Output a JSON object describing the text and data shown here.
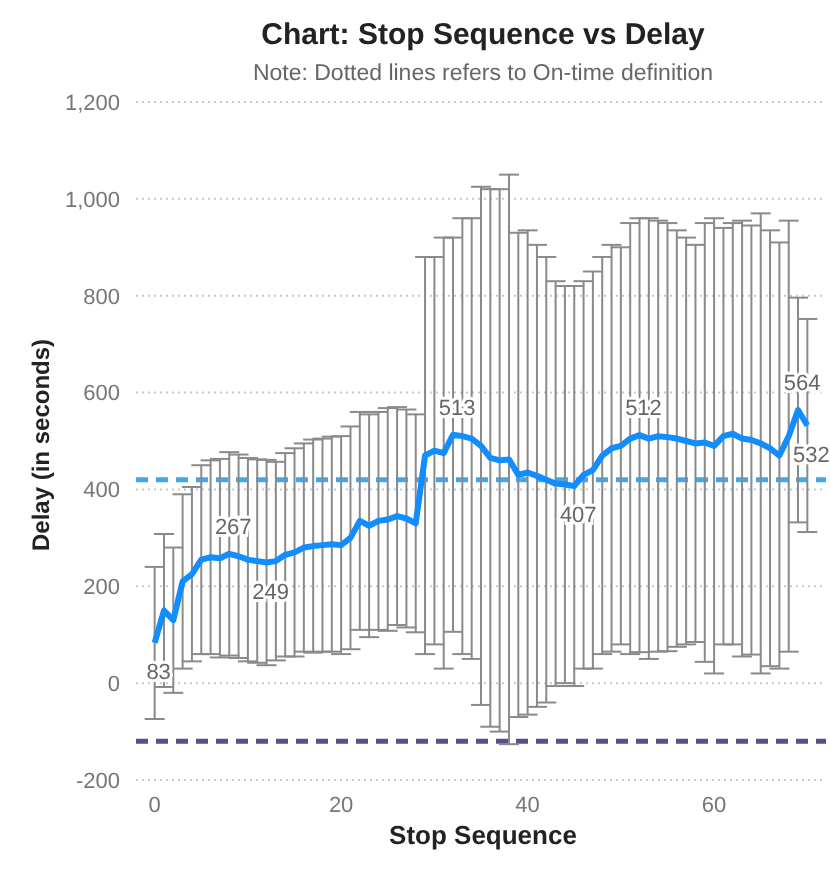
{
  "chart_data": {
    "type": "line",
    "title": "Chart: Stop Sequence vs Delay",
    "subtitle": "Note: Dotted lines refers to On-time definition",
    "xlabel": "Stop Sequence",
    "ylabel": "Delay (in seconds)",
    "x": [
      0,
      1,
      2,
      3,
      4,
      5,
      6,
      7,
      8,
      9,
      10,
      11,
      12,
      13,
      14,
      15,
      16,
      17,
      18,
      19,
      20,
      21,
      22,
      23,
      24,
      25,
      26,
      27,
      28,
      29,
      30,
      31,
      32,
      33,
      34,
      35,
      36,
      37,
      38,
      39,
      40,
      41,
      42,
      43,
      44,
      45,
      46,
      47,
      48,
      49,
      50,
      51,
      52,
      53,
      54,
      55,
      56,
      57,
      58,
      59,
      60,
      61,
      62,
      63,
      64,
      65,
      66,
      67,
      68,
      69,
      70
    ],
    "series": [
      {
        "color": "#118dff",
        "values": [
          83,
          150,
          130,
          210,
          225,
          255,
          260,
          258,
          267,
          262,
          255,
          252,
          249,
          252,
          265,
          270,
          280,
          283,
          285,
          287,
          285,
          300,
          335,
          325,
          335,
          338,
          345,
          340,
          330,
          470,
          480,
          475,
          513,
          510,
          505,
          490,
          465,
          460,
          462,
          430,
          435,
          428,
          420,
          412,
          410,
          407,
          430,
          440,
          470,
          485,
          490,
          505,
          512,
          505,
          510,
          508,
          505,
          500,
          495,
          497,
          490,
          510,
          515,
          505,
          502,
          495,
          485,
          470,
          510,
          564,
          532
        ],
        "errors": [
          157,
          158,
          150,
          180,
          180,
          195,
          200,
          205,
          210,
          210,
          210,
          210,
          212,
          205,
          210,
          215,
          215,
          220,
          220,
          222,
          225,
          230,
          225,
          230,
          225,
          230,
          225,
          225,
          225,
          410,
          400,
          445,
          407,
          450,
          455,
          535,
          555,
          560,
          588,
          500,
          500,
          477,
          460,
          418,
          410,
          413,
          400,
          410,
          410,
          420,
          410,
          445,
          448,
          455,
          445,
          442,
          430,
          420,
          410,
          453,
          470,
          430,
          435,
          450,
          443,
          475,
          450,
          440,
          445,
          232,
          220
        ],
        "value_labels": [
          "83",
          null,
          null,
          null,
          null,
          null,
          null,
          null,
          "267",
          null,
          null,
          null,
          "249",
          null,
          null,
          null,
          null,
          null,
          null,
          null,
          null,
          null,
          null,
          null,
          null,
          null,
          null,
          null,
          null,
          null,
          null,
          null,
          "513",
          null,
          null,
          null,
          null,
          null,
          null,
          null,
          null,
          null,
          null,
          null,
          null,
          "407",
          null,
          null,
          null,
          null,
          null,
          null,
          "512",
          null,
          null,
          null,
          null,
          null,
          null,
          null,
          null,
          null,
          null,
          null,
          null,
          null,
          null,
          null,
          null,
          "564",
          "532"
        ]
      }
    ],
    "xlim": [
      -2,
      72
    ],
    "xticks": [
      0,
      20,
      40,
      60
    ],
    "ylim": [
      -200,
      1200
    ],
    "yticks": [
      {
        "value": -200,
        "label": "-200"
      },
      {
        "value": 0,
        "label": "0"
      },
      {
        "value": 200,
        "label": "200"
      },
      {
        "value": 400,
        "label": "400"
      },
      {
        "value": 600,
        "label": "600"
      },
      {
        "value": 800,
        "label": "800"
      },
      {
        "value": 1000,
        "label": "1,000"
      },
      {
        "value": 1200,
        "label": "1,200"
      }
    ],
    "grid": "y",
    "marker": "none",
    "line_style": "solid",
    "ref_lines": [
      {
        "axis": "y",
        "value": 420,
        "color": "#41a8f0",
        "line_style": "dashed"
      },
      {
        "axis": "y",
        "value": -120,
        "color": "#5e4b8b",
        "line_style": "dashed"
      }
    ]
  }
}
